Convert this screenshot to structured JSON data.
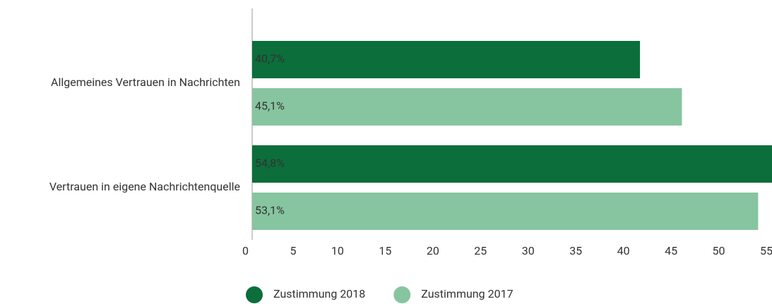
{
  "chart_data": {
    "type": "bar",
    "orientation": "horizontal",
    "categories": [
      "Allgemeines Vertrauen in Nachrichten",
      "Vertrauen in eigene Nachrichtenquelle"
    ],
    "series": [
      {
        "name": "Zustimmung 2018",
        "color": "#0b6e3b",
        "values": [
          40.7,
          54.8
        ],
        "value_labels": [
          "40,7%",
          "54,8%"
        ],
        "label_color": "#ffffff"
      },
      {
        "name": "Zustimmung 2017",
        "color": "#86c5a0",
        "values": [
          45.1,
          53.1
        ],
        "value_labels": [
          "45,1%",
          "53,1%"
        ],
        "label_color": "#000000"
      }
    ],
    "xlim": [
      0,
      55
    ],
    "xticks": [
      0,
      5,
      10,
      15,
      20,
      25,
      30,
      35,
      40,
      45,
      50,
      55
    ],
    "legend": "bottom"
  }
}
